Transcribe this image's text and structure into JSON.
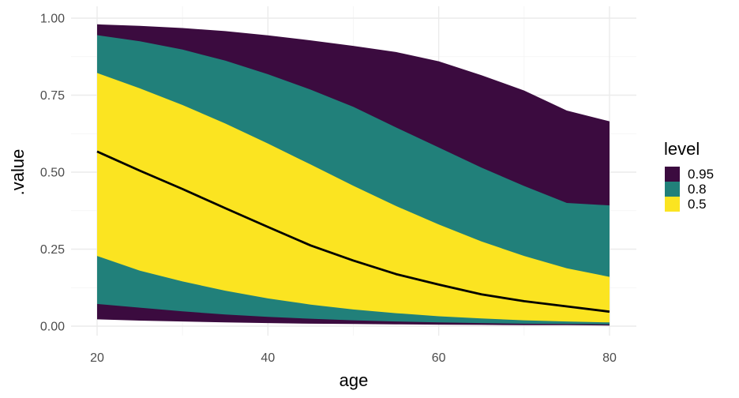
{
  "chart_data": {
    "type": "area",
    "xlabel": "age",
    "ylabel": ".value",
    "xlim": [
      20,
      80
    ],
    "ylim": [
      0,
      1
    ],
    "x_ticks": [
      20,
      40,
      60,
      80
    ],
    "x_tick_labels": [
      "20",
      "40",
      "60",
      "80"
    ],
    "y_ticks": [
      0,
      0.25,
      0.5,
      0.75,
      1.0
    ],
    "y_tick_labels": [
      "0.00",
      "0.25",
      "0.50",
      "0.75",
      "1.00"
    ],
    "grid": true,
    "legend": {
      "title": "level",
      "position": "right",
      "entries": [
        {
          "label": "0.95",
          "color": "#3b0b3f"
        },
        {
          "label": "0.8",
          "color": "#21807a"
        },
        {
          "label": "0.5",
          "color": "#fbe421"
        }
      ]
    },
    "x": [
      20,
      25,
      30,
      35,
      40,
      45,
      50,
      55,
      60,
      65,
      70,
      75,
      80
    ],
    "series": [
      {
        "name": "0.95",
        "color": "#3b0b3f",
        "lower": [
          0.022,
          0.018,
          0.015,
          0.012,
          0.01,
          0.008,
          0.007,
          0.006,
          0.005,
          0.004,
          0.003,
          0.003,
          0.002
        ],
        "upper": [
          0.98,
          0.975,
          0.968,
          0.958,
          0.944,
          0.928,
          0.91,
          0.89,
          0.86,
          0.815,
          0.765,
          0.7,
          0.665
        ]
      },
      {
        "name": "0.8",
        "color": "#21807a",
        "lower": [
          0.072,
          0.06,
          0.048,
          0.038,
          0.03,
          0.024,
          0.019,
          0.015,
          0.012,
          0.01,
          0.008,
          0.007,
          0.006
        ],
        "upper": [
          0.945,
          0.925,
          0.898,
          0.862,
          0.818,
          0.768,
          0.712,
          0.645,
          0.58,
          0.515,
          0.455,
          0.4,
          0.392
        ]
      },
      {
        "name": "0.5",
        "color": "#fbe421",
        "lower": [
          0.228,
          0.18,
          0.145,
          0.115,
          0.09,
          0.07,
          0.054,
          0.042,
          0.032,
          0.025,
          0.019,
          0.015,
          0.012
        ],
        "upper": [
          0.822,
          0.772,
          0.718,
          0.658,
          0.593,
          0.525,
          0.456,
          0.39,
          0.33,
          0.275,
          0.228,
          0.188,
          0.16
        ]
      }
    ],
    "median": {
      "color": "#000000",
      "values": [
        0.567,
        0.505,
        0.445,
        0.383,
        0.322,
        0.262,
        0.213,
        0.169,
        0.135,
        0.103,
        0.081,
        0.064,
        0.047
      ]
    }
  }
}
